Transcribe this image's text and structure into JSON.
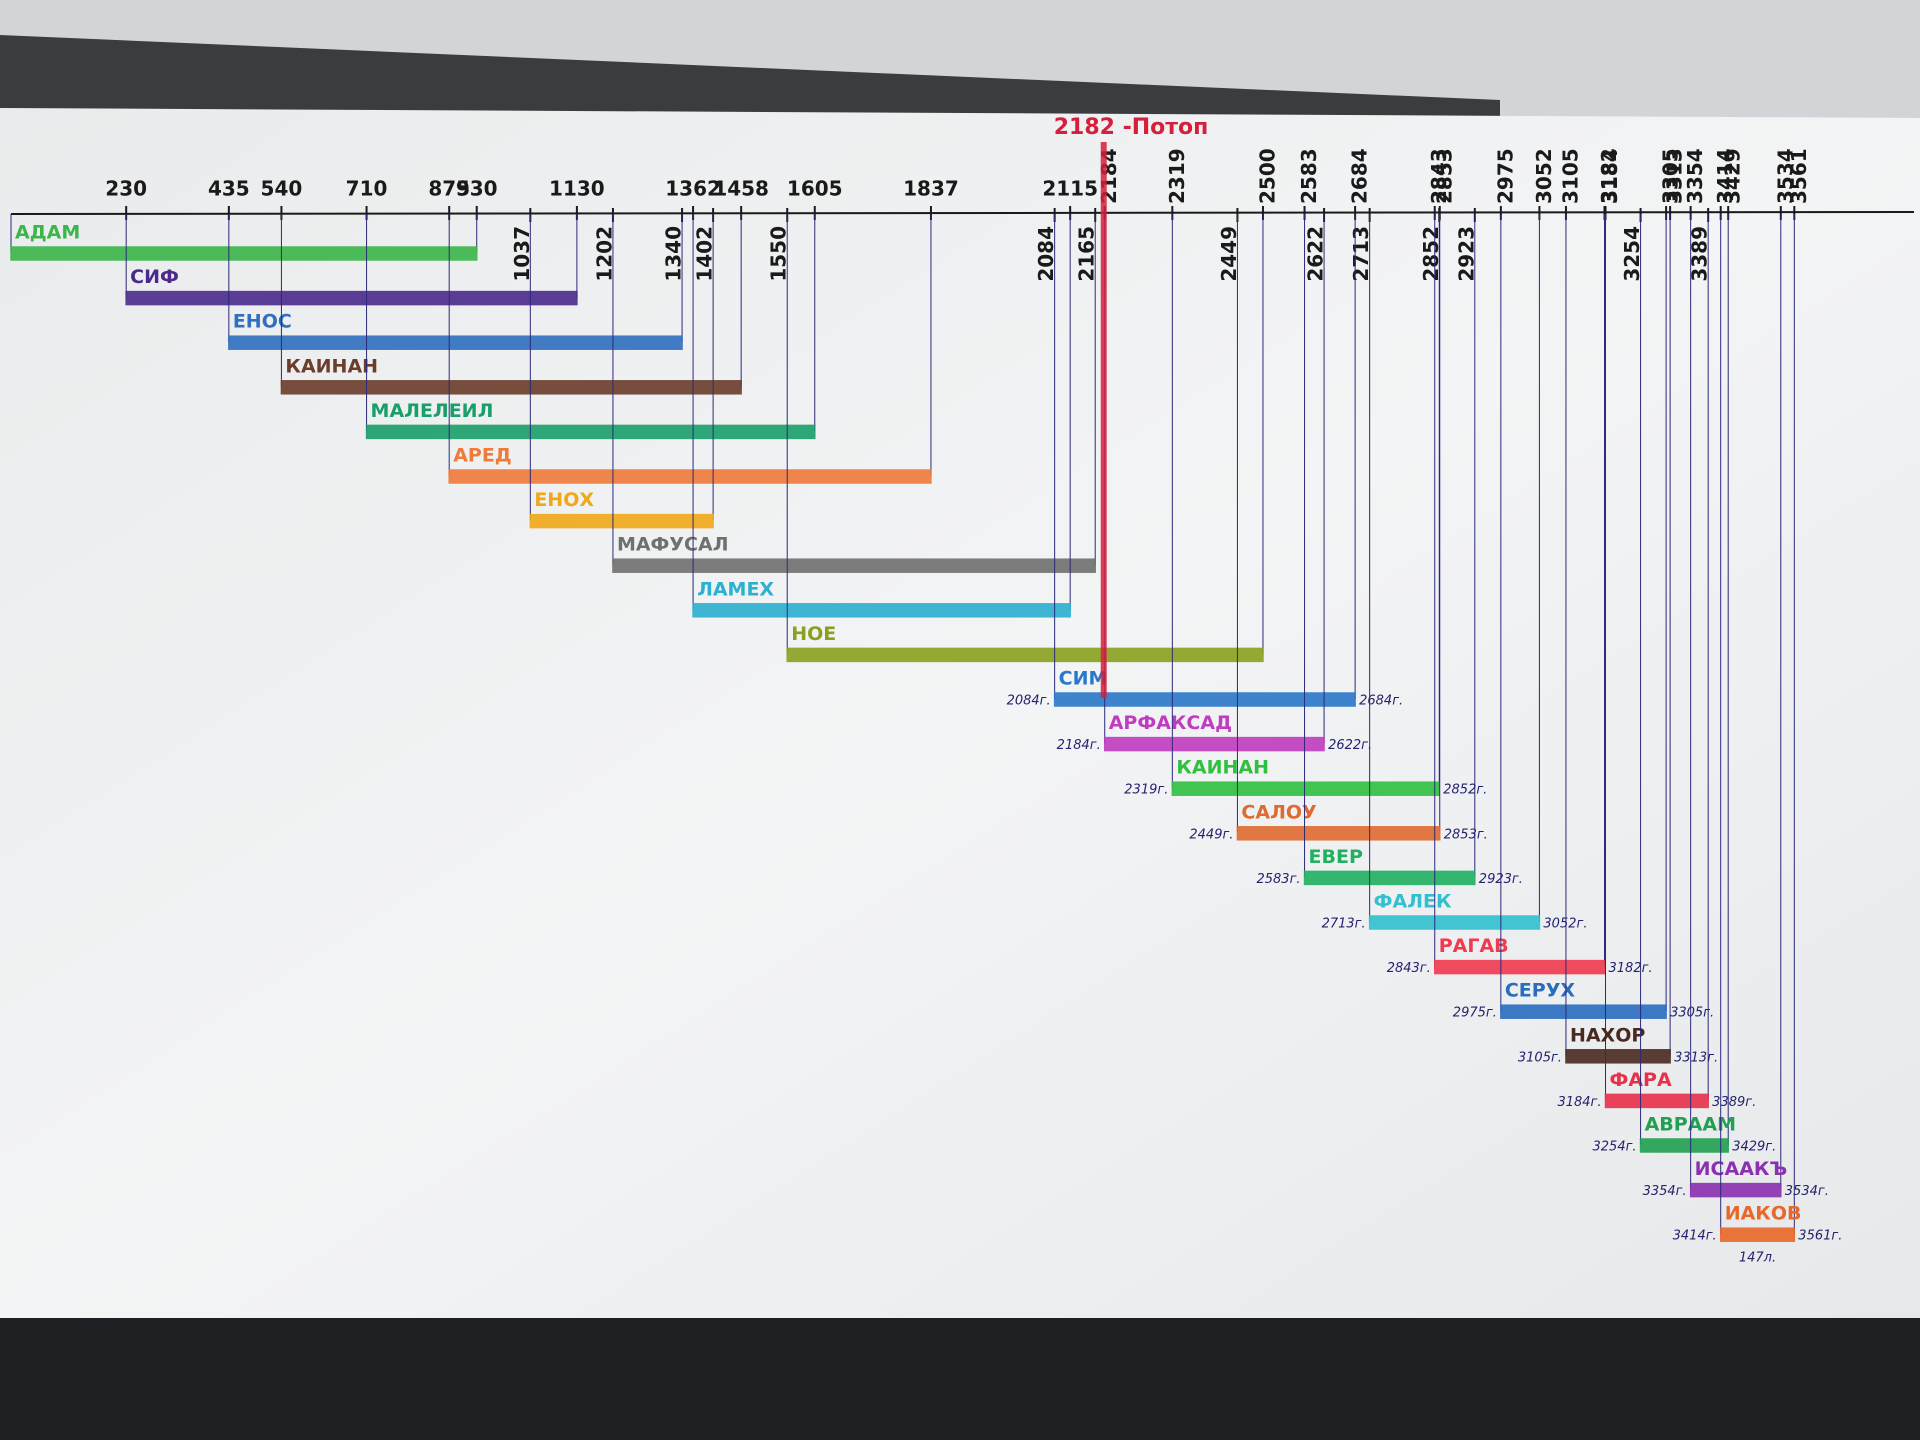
{
  "chart_data": {
    "type": "timeline",
    "annotation": {
      "text": "2182 -Потоп",
      "x": 2182,
      "color": "#d4203c"
    },
    "xlim": [
      0,
      3800
    ],
    "xticks": [
      230,
      435,
      540,
      710,
      875,
      930,
      1130,
      1362,
      1458,
      1605,
      1837,
      2115,
      2184,
      2319,
      2500,
      2583,
      2684,
      2843,
      2853,
      2975,
      3052,
      3105,
      3182,
      3184,
      3305,
      3313,
      3354,
      3414,
      3429,
      3534,
      3561
    ],
    "xticks_below": [
      1037,
      1202,
      1340,
      1402,
      1550,
      2084,
      2165,
      2449,
      2622,
      2713,
      2852,
      2923,
      3254,
      3389
    ],
    "series": [
      {
        "name": "АДАМ",
        "color": "#3cb54a",
        "start": 0,
        "end": 930
      },
      {
        "name": "СИФ",
        "color": "#4b2a8c",
        "start": 230,
        "end": 1130
      },
      {
        "name": "ЕНОС",
        "color": "#2f6fc0",
        "start": 435,
        "end": 1340
      },
      {
        "name": "КАИНАН",
        "color": "#6b3d2a",
        "start": 540,
        "end": 1458
      },
      {
        "name": "МАЛЕЛЕИЛ",
        "color": "#1a9e6a",
        "start": 710,
        "end": 1605
      },
      {
        "name": "АРЕД",
        "color": "#f07a3a",
        "start": 875,
        "end": 1837
      },
      {
        "name": "ЕНОХ",
        "color": "#f0a818",
        "start": 1037,
        "end": 1402
      },
      {
        "name": "МАФУСАЛ",
        "color": "#707070",
        "start": 1202,
        "end": 2165
      },
      {
        "name": "ЛАМЕХ",
        "color": "#2bb0d0",
        "start": 1362,
        "end": 2115
      },
      {
        "name": "НОЕ",
        "color": "#8aa020",
        "start": 1550,
        "end": 2500
      },
      {
        "name": "СИМ",
        "color": "#2a78c8",
        "start": 2084,
        "end": 2684,
        "start_label": "2084г.",
        "end_label": "2684г."
      },
      {
        "name": "АРФАКСАД",
        "color": "#c03cc0",
        "start": 2184,
        "end": 2622,
        "start_label": "2184г.",
        "end_label": "2622г."
      },
      {
        "name": "КАИНАН",
        "color": "#30c040",
        "start": 2319,
        "end": 2852,
        "start_label": "2319г.",
        "end_label": "2852г."
      },
      {
        "name": "САЛОУ",
        "color": "#e06a30",
        "start": 2449,
        "end": 2853,
        "start_label": "2449г.",
        "end_label": "2853г."
      },
      {
        "name": "ЕВЕР",
        "color": "#20b060",
        "start": 2583,
        "end": 2923,
        "start_label": "2583г.",
        "end_label": "2923г."
      },
      {
        "name": "ФАЛЕК",
        "color": "#30c0d0",
        "start": 2713,
        "end": 3052,
        "start_label": "2713г.",
        "end_label": "3052г."
      },
      {
        "name": "РАГАВ",
        "color": "#f03a50",
        "start": 2843,
        "end": 3182,
        "start_label": "2843г.",
        "end_label": "3182г."
      },
      {
        "name": "СЕРУХ",
        "color": "#2a6cc0",
        "start": 2975,
        "end": 3305,
        "start_label": "2975г.",
        "end_label": "3305г."
      },
      {
        "name": "НАХОР",
        "color": "#4a2a20",
        "start": 3105,
        "end": 3313,
        "start_label": "3105г.",
        "end_label": "3313г."
      },
      {
        "name": "ФАРА",
        "color": "#e8304a",
        "start": 3184,
        "end": 3389,
        "start_label": "3184г.",
        "end_label": "3389г."
      },
      {
        "name": "АВРААМ",
        "color": "#20a050",
        "start": 3254,
        "end": 3429,
        "start_label": "3254г.",
        "end_label": "3429г."
      },
      {
        "name": "ИСААКЪ",
        "color": "#8a30b0",
        "start": 3354,
        "end": 3534,
        "start_label": "3354г.",
        "end_label": "3534г."
      },
      {
        "name": "ИАКОВ",
        "color": "#e8682a",
        "start": 3414,
        "end": 3561,
        "start_label": "3414г.",
        "end_label": "3561г.",
        "note": "147л."
      }
    ]
  }
}
